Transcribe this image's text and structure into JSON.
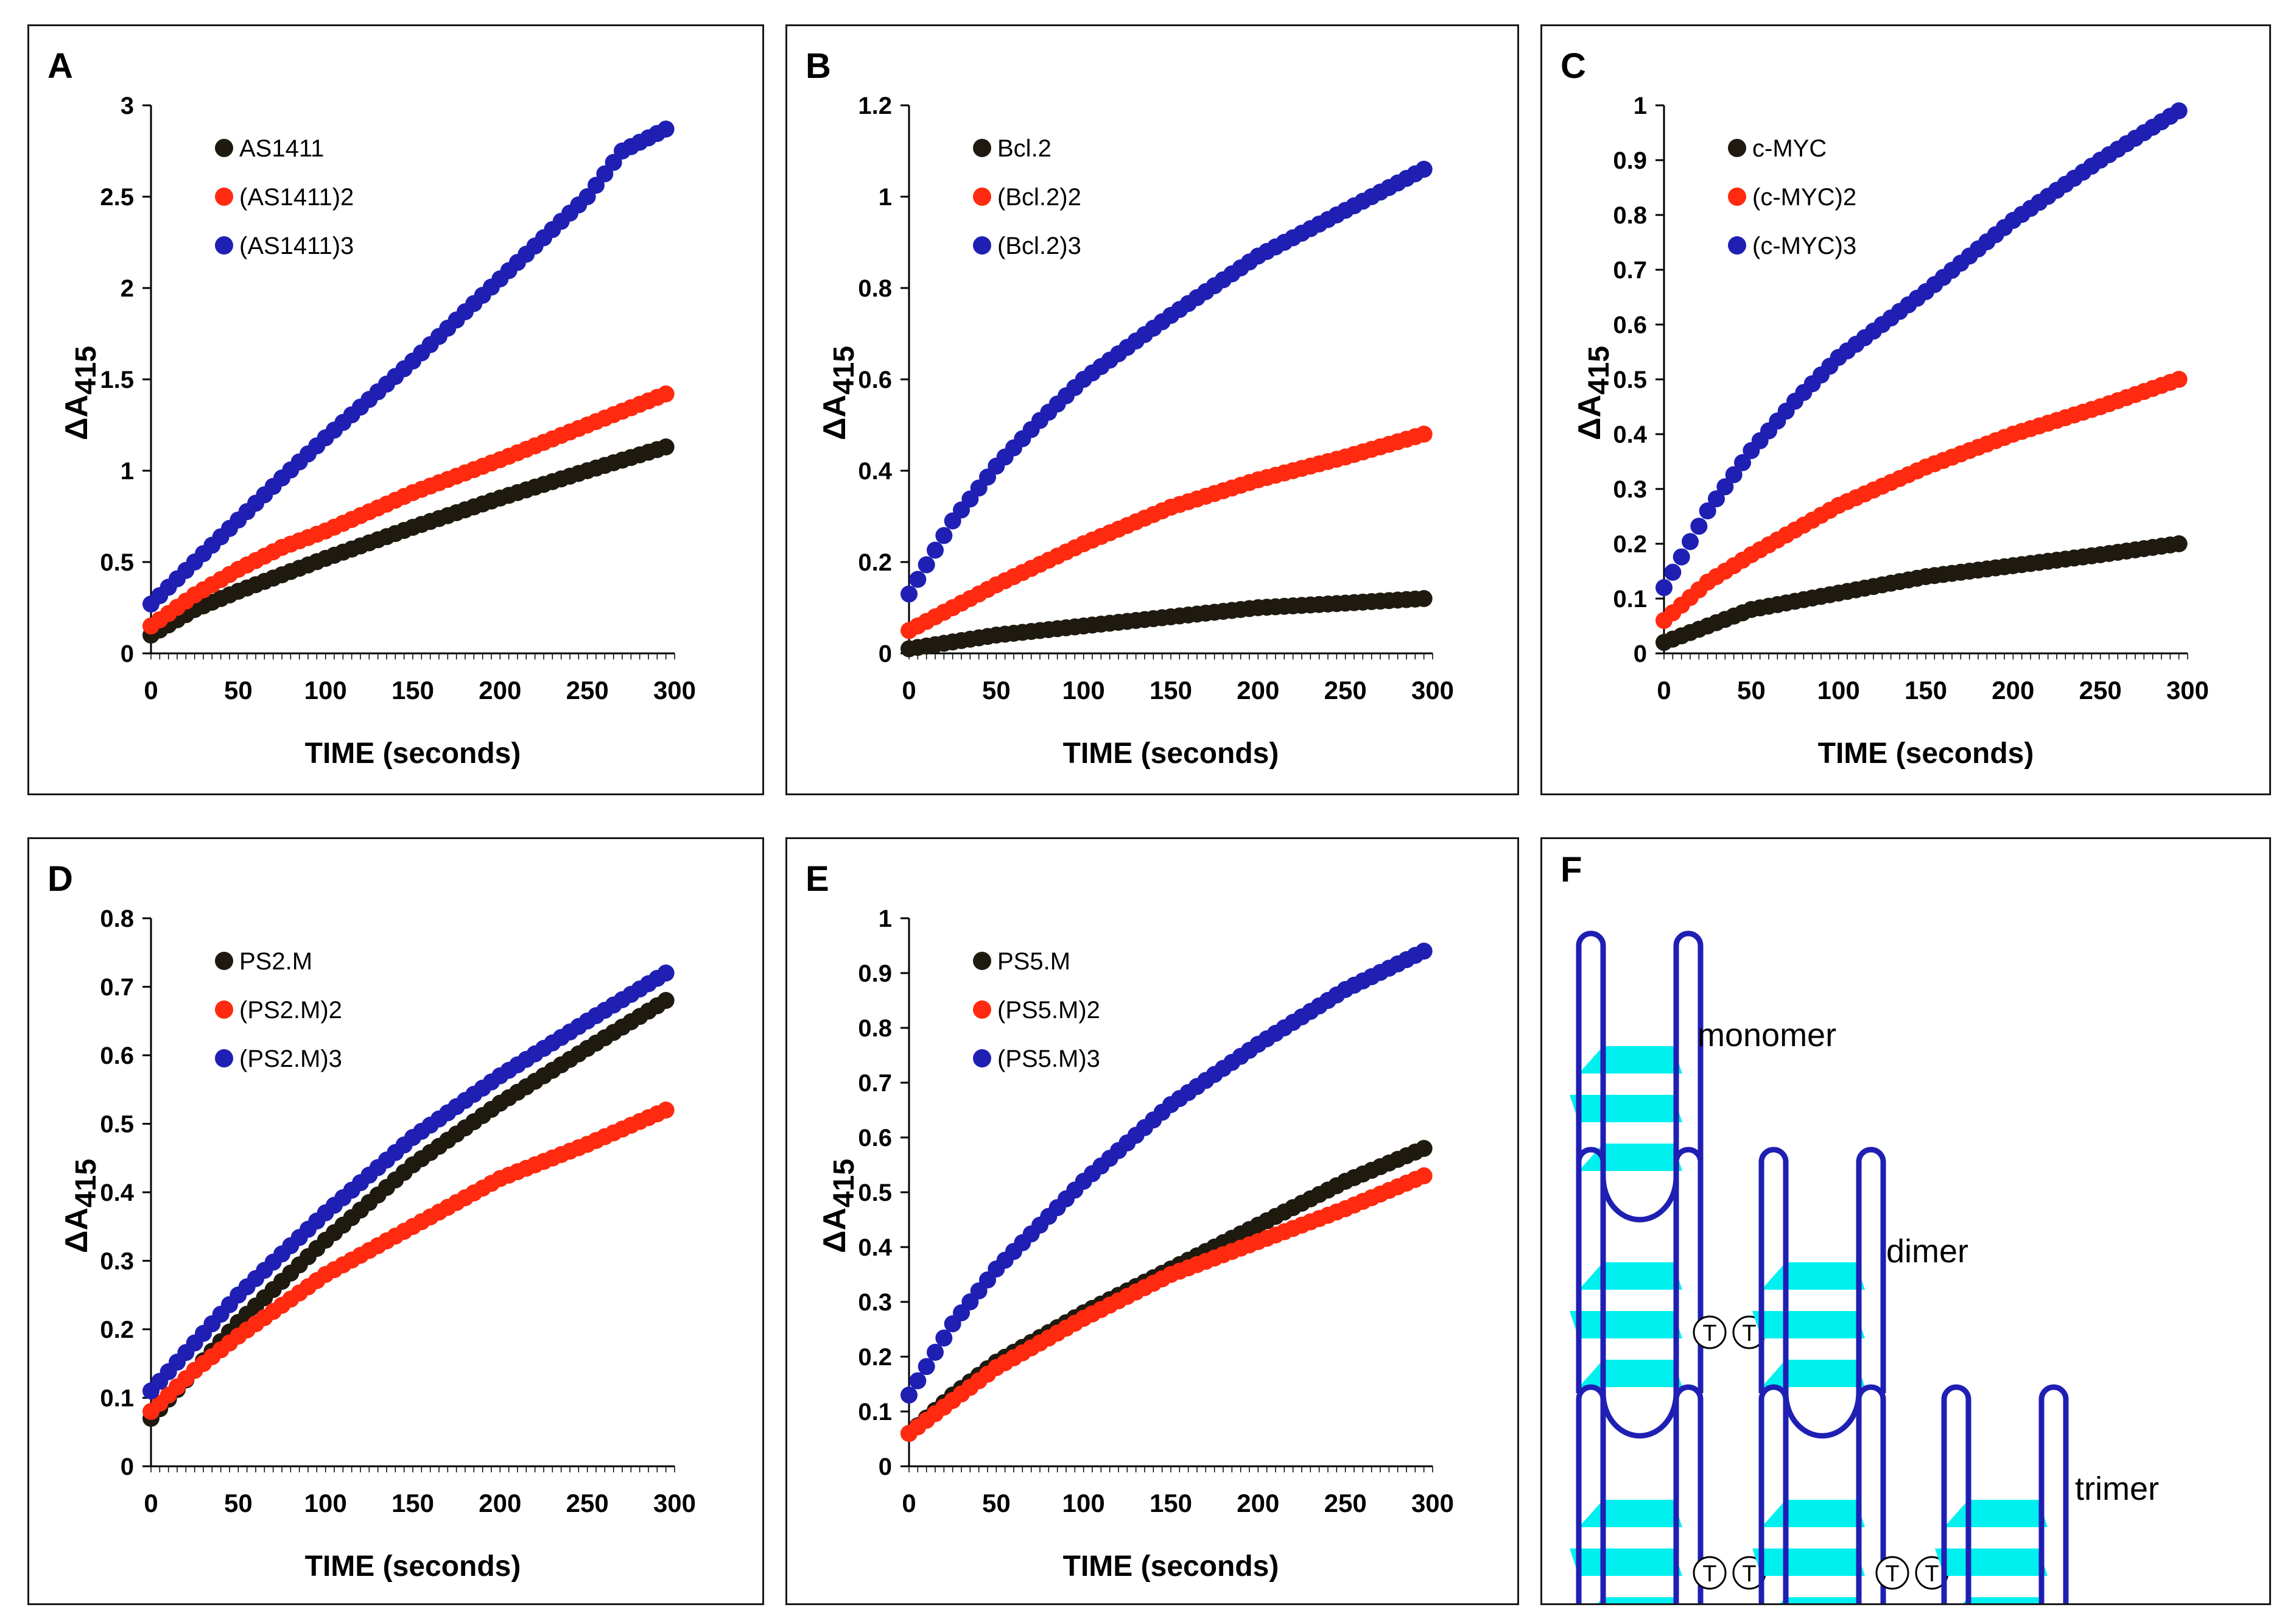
{
  "colors": {
    "monomer": "#1f1a10",
    "dimer": "#ff2a0f",
    "trimer": "#1f1fb4",
    "quad": "#00f0f0",
    "frame": "#1f1fb4"
  },
  "chart_data": [
    {
      "type": "scatter",
      "letter": "A",
      "xlabel": "TIME (seconds)",
      "ylabel_main": "ΔA",
      "ylabel_sub": "415",
      "xlim": [
        0,
        300
      ],
      "ylim": [
        0,
        3
      ],
      "xticks": [
        0,
        50,
        100,
        150,
        200,
        250,
        300
      ],
      "yticks": [
        0,
        0.5,
        1,
        1.5,
        2,
        2.5,
        3
      ],
      "ytick_labels": [
        "0",
        "0.5",
        "1",
        "1.5",
        "2",
        "2.5",
        "3"
      ],
      "series": [
        {
          "name": "AS1411",
          "color": "#1f1a10",
          "x": [
            0,
            25,
            50,
            75,
            100,
            150,
            200,
            250,
            295
          ],
          "y": [
            0.1,
            0.24,
            0.34,
            0.43,
            0.52,
            0.69,
            0.85,
            1.0,
            1.13
          ]
        },
        {
          "name": "(AS1411)2",
          "color": "#ff2a0f",
          "x": [
            0,
            25,
            50,
            75,
            100,
            150,
            200,
            250,
            295
          ],
          "y": [
            0.15,
            0.32,
            0.46,
            0.58,
            0.67,
            0.88,
            1.06,
            1.25,
            1.42
          ]
        },
        {
          "name": "(AS1411)3",
          "color": "#1f1fb4",
          "x": [
            0,
            25,
            50,
            75,
            100,
            150,
            200,
            250,
            270,
            295
          ],
          "y": [
            0.27,
            0.5,
            0.73,
            0.96,
            1.18,
            1.6,
            2.05,
            2.5,
            2.75,
            2.87
          ]
        }
      ]
    },
    {
      "type": "scatter",
      "letter": "B",
      "xlabel": "TIME (seconds)",
      "ylabel_main": "ΔA",
      "ylabel_sub": "415",
      "xlim": [
        0,
        300
      ],
      "ylim": [
        0,
        1.2
      ],
      "xticks": [
        0,
        50,
        100,
        150,
        200,
        250,
        300
      ],
      "yticks": [
        0,
        0.2,
        0.4,
        0.6,
        0.8,
        1,
        1.2
      ],
      "ytick_labels": [
        "0",
        "0.2",
        "0.4",
        "0.6",
        "0.8",
        "1",
        "1.2"
      ],
      "series": [
        {
          "name": "Bcl.2",
          "color": "#1f1a10",
          "x": [
            0,
            50,
            100,
            150,
            200,
            250,
            295
          ],
          "y": [
            0.01,
            0.04,
            0.06,
            0.08,
            0.1,
            0.11,
            0.12
          ]
        },
        {
          "name": "(Bcl.2)2",
          "color": "#ff2a0f",
          "x": [
            0,
            25,
            50,
            100,
            150,
            200,
            250,
            295
          ],
          "y": [
            0.05,
            0.1,
            0.15,
            0.24,
            0.32,
            0.38,
            0.43,
            0.48
          ]
        },
        {
          "name": "(Bcl.2)3",
          "color": "#1f1fb4",
          "x": [
            0,
            25,
            50,
            75,
            100,
            150,
            200,
            250,
            295
          ],
          "y": [
            0.13,
            0.29,
            0.41,
            0.51,
            0.6,
            0.74,
            0.87,
            0.97,
            1.06
          ]
        }
      ]
    },
    {
      "type": "scatter",
      "letter": "C",
      "xlabel": "TIME (seconds)",
      "ylabel_main": "ΔA",
      "ylabel_sub": "415",
      "xlim": [
        0,
        300
      ],
      "ylim": [
        0,
        1
      ],
      "xticks": [
        0,
        50,
        100,
        150,
        200,
        250,
        300
      ],
      "yticks": [
        0,
        0.1,
        0.2,
        0.3,
        0.4,
        0.5,
        0.6,
        0.7,
        0.8,
        0.9,
        1
      ],
      "ytick_labels": [
        "0",
        "0.1",
        "0.2",
        "0.3",
        "0.4",
        "0.5",
        "0.6",
        "0.7",
        "0.8",
        "0.9",
        "1"
      ],
      "series": [
        {
          "name": "c-MYC",
          "color": "#1f1a10",
          "x": [
            0,
            25,
            50,
            100,
            150,
            200,
            250,
            295
          ],
          "y": [
            0.02,
            0.05,
            0.08,
            0.11,
            0.14,
            0.16,
            0.18,
            0.2
          ]
        },
        {
          "name": "(c-MYC)2",
          "color": "#ff2a0f",
          "x": [
            0,
            25,
            50,
            100,
            150,
            200,
            250,
            295
          ],
          "y": [
            0.06,
            0.13,
            0.18,
            0.27,
            0.34,
            0.4,
            0.45,
            0.5
          ]
        },
        {
          "name": "(c-MYC)3",
          "color": "#1f1fb4",
          "x": [
            0,
            25,
            50,
            75,
            100,
            150,
            200,
            250,
            295
          ],
          "y": [
            0.12,
            0.26,
            0.37,
            0.46,
            0.54,
            0.66,
            0.79,
            0.9,
            0.99
          ]
        }
      ]
    },
    {
      "type": "scatter",
      "letter": "D",
      "xlabel": "TIME (seconds)",
      "ylabel_main": "ΔA",
      "ylabel_sub": "415",
      "xlim": [
        0,
        300
      ],
      "ylim": [
        0,
        0.8
      ],
      "xticks": [
        0,
        50,
        100,
        150,
        200,
        250,
        300
      ],
      "yticks": [
        0,
        0.1,
        0.2,
        0.3,
        0.4,
        0.5,
        0.6,
        0.7,
        0.8
      ],
      "ytick_labels": [
        "0",
        "0.1",
        "0.2",
        "0.3",
        "0.4",
        "0.5",
        "0.6",
        "0.7",
        "0.8"
      ],
      "series": [
        {
          "name": "PS2.M",
          "color": "#1f1a10",
          "x": [
            0,
            25,
            50,
            100,
            150,
            200,
            250,
            295
          ],
          "y": [
            0.07,
            0.14,
            0.21,
            0.33,
            0.44,
            0.53,
            0.61,
            0.68
          ]
        },
        {
          "name": "(PS2.M)2",
          "color": "#ff2a0f",
          "x": [
            0,
            25,
            50,
            100,
            150,
            200,
            250,
            295
          ],
          "y": [
            0.08,
            0.14,
            0.19,
            0.28,
            0.35,
            0.42,
            0.47,
            0.52
          ]
        },
        {
          "name": "(PS2.M)3",
          "color": "#1f1fb4",
          "x": [
            0,
            25,
            50,
            100,
            150,
            200,
            250,
            295
          ],
          "y": [
            0.11,
            0.18,
            0.25,
            0.37,
            0.48,
            0.57,
            0.65,
            0.72
          ]
        }
      ]
    },
    {
      "type": "scatter",
      "letter": "E",
      "xlabel": "TIME (seconds)",
      "ylabel_main": "ΔA",
      "ylabel_sub": "415",
      "xlim": [
        0,
        300
      ],
      "ylim": [
        0,
        1
      ],
      "xticks": [
        0,
        50,
        100,
        150,
        200,
        250,
        300
      ],
      "yticks": [
        0,
        0.1,
        0.2,
        0.3,
        0.4,
        0.5,
        0.6,
        0.7,
        0.8,
        0.9,
        1
      ],
      "ytick_labels": [
        "0",
        "0.1",
        "0.2",
        "0.3",
        "0.4",
        "0.5",
        "0.6",
        "0.7",
        "0.8",
        "0.9",
        "1"
      ],
      "series": [
        {
          "name": "PS5.M",
          "color": "#1f1a10",
          "x": [
            0,
            25,
            50,
            100,
            150,
            200,
            250,
            295
          ],
          "y": [
            0.06,
            0.13,
            0.19,
            0.28,
            0.36,
            0.44,
            0.52,
            0.58
          ]
        },
        {
          "name": "(PS5.M)2",
          "color": "#ff2a0f",
          "x": [
            0,
            25,
            50,
            100,
            150,
            200,
            250,
            295
          ],
          "y": [
            0.06,
            0.12,
            0.18,
            0.27,
            0.35,
            0.41,
            0.47,
            0.53
          ]
        },
        {
          "name": "(PS5.M)3",
          "color": "#1f1fb4",
          "x": [
            0,
            25,
            50,
            75,
            100,
            150,
            200,
            250,
            295
          ],
          "y": [
            0.13,
            0.26,
            0.36,
            0.44,
            0.52,
            0.66,
            0.77,
            0.87,
            0.94
          ]
        }
      ]
    }
  ],
  "diagram": {
    "letter": "F",
    "labels": {
      "monomer": "monomer",
      "dimer": "dimer",
      "trimer": "trimer"
    },
    "linker": "T"
  }
}
